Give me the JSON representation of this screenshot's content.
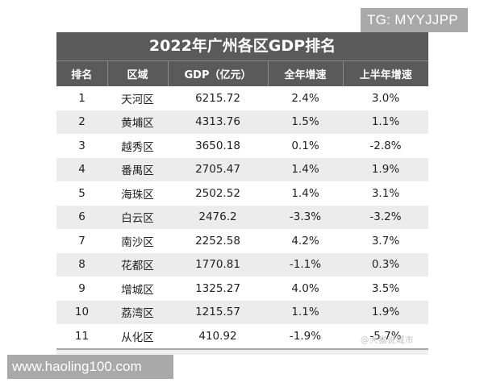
{
  "watermarks": {
    "top_right": "TG: MYYJJPP",
    "bottom_left": "www.haoling100.com",
    "overlay": "@大猫说城市"
  },
  "table": {
    "title": "2022年广州各区GDP排名",
    "headers": [
      "排名",
      "区域",
      "GDP（亿元）",
      "全年增速",
      "上半年增速"
    ],
    "rows": [
      {
        "rank": "1",
        "district": "天河区",
        "gdp": "6215.72",
        "annual_growth": "2.4%",
        "h1_growth": "3.0%"
      },
      {
        "rank": "2",
        "district": "黄埔区",
        "gdp": "4313.76",
        "annual_growth": "1.5%",
        "h1_growth": "1.1%"
      },
      {
        "rank": "3",
        "district": "越秀区",
        "gdp": "3650.18",
        "annual_growth": "0.1%",
        "h1_growth": "-2.8%"
      },
      {
        "rank": "4",
        "district": "番禺区",
        "gdp": "2705.47",
        "annual_growth": "1.4%",
        "h1_growth": "1.9%"
      },
      {
        "rank": "5",
        "district": "海珠区",
        "gdp": "2502.52",
        "annual_growth": "1.4%",
        "h1_growth": "3.1%"
      },
      {
        "rank": "6",
        "district": "白云区",
        "gdp": "2476.2",
        "annual_growth": "-3.3%",
        "h1_growth": "-3.2%"
      },
      {
        "rank": "7",
        "district": "南沙区",
        "gdp": "2252.58",
        "annual_growth": "4.2%",
        "h1_growth": "3.7%"
      },
      {
        "rank": "8",
        "district": "花都区",
        "gdp": "1770.81",
        "annual_growth": "-1.1%",
        "h1_growth": "0.3%"
      },
      {
        "rank": "9",
        "district": "增城区",
        "gdp": "1325.27",
        "annual_growth": "4.0%",
        "h1_growth": "3.5%"
      },
      {
        "rank": "10",
        "district": "荔湾区",
        "gdp": "1215.57",
        "annual_growth": "1.1%",
        "h1_growth": "1.9%"
      },
      {
        "rank": "11",
        "district": "从化区",
        "gdp": "410.92",
        "annual_growth": "-1.9%",
        "h1_growth": "-5.7%"
      }
    ]
  },
  "colors": {
    "header_bg": "#5a5a5a",
    "stripe_bg": "#ececec",
    "badge_bg": "#a9a9a9"
  }
}
